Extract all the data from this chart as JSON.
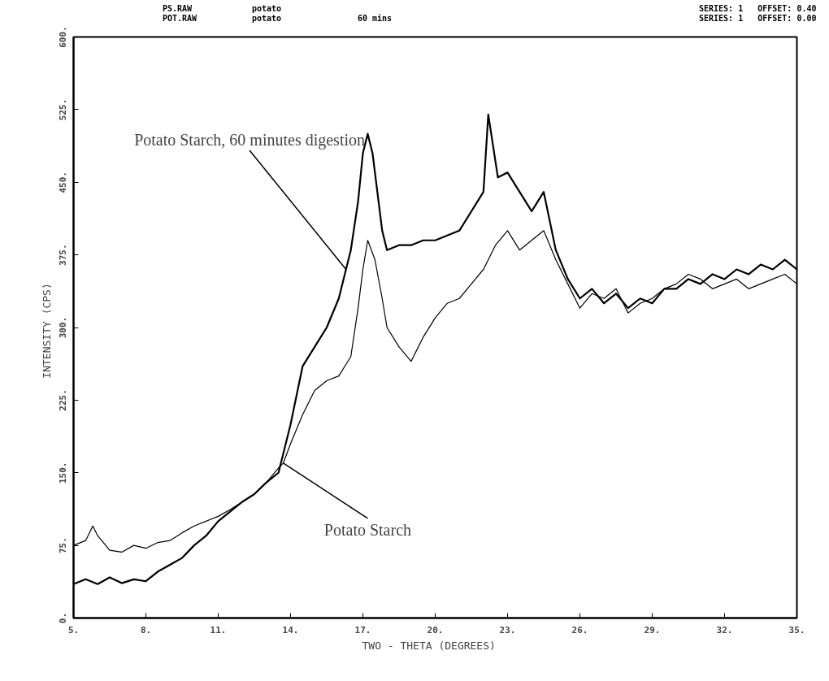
{
  "chart_data": {
    "type": "line",
    "xlabel": "TWO - THETA   (DEGREES)",
    "ylabel": "INTENSITY  (CPS)",
    "xlim": [
      5,
      35
    ],
    "ylim": [
      0,
      600
    ],
    "xticks": [
      {
        "value": 5,
        "label": "5."
      },
      {
        "value": 8,
        "label": "8."
      },
      {
        "value": 11,
        "label": "11."
      },
      {
        "value": 14,
        "label": "14."
      },
      {
        "value": 17,
        "label": "17."
      },
      {
        "value": 20,
        "label": "20."
      },
      {
        "value": 23,
        "label": "23."
      },
      {
        "value": 26,
        "label": "26."
      },
      {
        "value": 29,
        "label": "29."
      },
      {
        "value": 32,
        "label": "32."
      },
      {
        "value": 35,
        "label": "35."
      }
    ],
    "yticks": [
      {
        "value": 0,
        "label": "0."
      },
      {
        "value": 75,
        "label": "75."
      },
      {
        "value": 150,
        "label": "150."
      },
      {
        "value": 225,
        "label": "225."
      },
      {
        "value": 300,
        "label": "300."
      },
      {
        "value": 375,
        "label": "375."
      },
      {
        "value": 450,
        "label": "450."
      },
      {
        "value": 525,
        "label": "525."
      },
      {
        "value": 600,
        "label": "600."
      }
    ],
    "grid": false,
    "marker": "none",
    "line_style": "solid",
    "series": [
      {
        "color": "#000000",
        "x": [
          5,
          5.5,
          6,
          6.5,
          7,
          7.5,
          8,
          8.5,
          9,
          9.5,
          10,
          10.5,
          11,
          11.5,
          12,
          12.5,
          13,
          13.5,
          14,
          14.5,
          15,
          15.5,
          16,
          16.3,
          16.5,
          16.8,
          17,
          17.2,
          17.4,
          17.6,
          17.8,
          18,
          18.5,
          19,
          19.5,
          20,
          20.5,
          21,
          21.5,
          22,
          22.2,
          22.6,
          23,
          23.5,
          24,
          24.5,
          25,
          25.5,
          26,
          26.5,
          27,
          27.5,
          28,
          28.5,
          29,
          29.5,
          30,
          30.5,
          31,
          31.5,
          32,
          32.5,
          33,
          33.5,
          34,
          34.5,
          35
        ],
        "values": [
          35,
          40,
          35,
          42,
          36,
          40,
          38,
          48,
          55,
          62,
          75,
          85,
          100,
          110,
          120,
          128,
          140,
          150,
          200,
          260,
          280,
          300,
          330,
          360,
          380,
          430,
          480,
          500,
          480,
          440,
          400,
          380,
          385,
          385,
          390,
          390,
          395,
          400,
          420,
          440,
          520,
          455,
          460,
          440,
          420,
          440,
          380,
          350,
          330,
          340,
          325,
          335,
          320,
          330,
          325,
          340,
          340,
          350,
          345,
          355,
          350,
          360,
          355,
          365,
          360,
          370,
          360
        ]
      },
      {
        "color": "#000000",
        "x": [
          5,
          5.5,
          5.8,
          6,
          6.5,
          7,
          7.5,
          8,
          8.5,
          9,
          9.5,
          10,
          10.5,
          11,
          11.5,
          12,
          12.5,
          13,
          13.5,
          13.7,
          14,
          14.5,
          15,
          15.5,
          16,
          16.5,
          16.8,
          17,
          17.2,
          17.5,
          17.8,
          18,
          18.5,
          19,
          19.5,
          20,
          20.5,
          21,
          21.5,
          22,
          22.5,
          23,
          23.5,
          24,
          24.5,
          25,
          25.5,
          26,
          26.5,
          27,
          27.5,
          28,
          28.5,
          29,
          29.5,
          30,
          30.5,
          31,
          31.5,
          32,
          32.5,
          33,
          33.5,
          34,
          34.5,
          35
        ],
        "values": [
          75,
          80,
          95,
          85,
          70,
          68,
          75,
          72,
          78,
          80,
          88,
          95,
          100,
          105,
          112,
          120,
          128,
          140,
          155,
          160,
          180,
          210,
          235,
          245,
          250,
          270,
          320,
          360,
          390,
          370,
          330,
          300,
          280,
          265,
          290,
          310,
          325,
          330,
          345,
          360,
          385,
          400,
          380,
          390,
          400,
          370,
          345,
          320,
          335,
          330,
          340,
          315,
          325,
          330,
          340,
          345,
          355,
          350,
          340,
          345,
          350,
          340,
          345,
          350,
          355,
          345
        ]
      }
    ],
    "annotations": [
      {
        "text": "Potato Starch, 60 minutes digestion",
        "x": 16.3,
        "y": 360
      },
      {
        "text": "Potato Starch",
        "x": 13.7,
        "y": 160
      },
      "PS.RAW",
      "potato",
      "POT.RAW",
      "potato",
      "60 mins",
      "SERIES: 1   OFFSET: 0.40",
      "SERIES: 1   OFFSET: 0.00"
    ]
  }
}
